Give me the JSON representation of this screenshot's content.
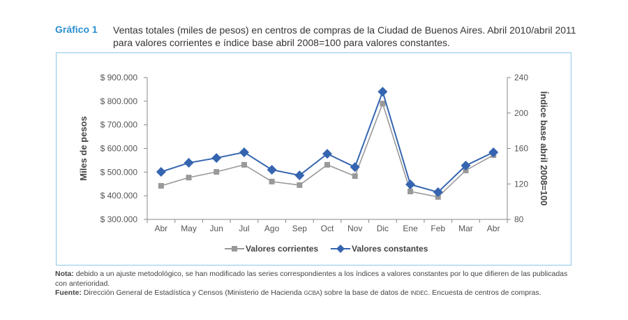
{
  "header": {
    "label": "Gráfico 1",
    "title": "Ventas totales (miles de pesos) en centros de compras de la Ciudad de Buenos Aires. Abril 2010/abril 2011 para valores corrientes e índice base abril 2008=100 para valores constantes."
  },
  "chart_data": {
    "type": "line",
    "categories": [
      "Abr",
      "May",
      "Jun",
      "Jul",
      "Ago",
      "Sep",
      "Oct",
      "Nov",
      "Dic",
      "Ene",
      "Feb",
      "Mar",
      "Abr"
    ],
    "ylabel": "Miles de pesos",
    "y2label": "Índice base abril 2008=100",
    "ylim": [
      300000,
      900000
    ],
    "y_ticks": [
      "$ 300.000",
      "$ 400.000",
      "$ 500.000",
      "$ 600.000",
      "$ 700.000",
      "$ 800.000",
      "$ 900.000"
    ],
    "y2lim": [
      80,
      240
    ],
    "y2_ticks": [
      "80",
      "120",
      "160",
      "200",
      "240"
    ],
    "series": [
      {
        "name": "Valores corrientes",
        "axis": "left",
        "color": "#999999",
        "marker": "square",
        "values": [
          442000,
          477000,
          501000,
          531000,
          460000,
          445000,
          531000,
          483000,
          790000,
          418000,
          395000,
          507000,
          572000
        ]
      },
      {
        "name": "Valores constantes",
        "axis": "right",
        "color": "#3565b0",
        "marker": "diamond",
        "values": [
          133.6,
          143.8,
          149.3,
          155.7,
          136,
          129.7,
          154,
          139,
          224,
          119.4,
          110.7,
          140.7,
          155.7
        ]
      }
    ],
    "legend": "bottom"
  },
  "notes": {
    "nota_label": "Nota:",
    "nota": " debido a un ajuste metodológico, se han modificado las series correspondientes a los índices a valores constantes por lo que difieren de las publicadas con anterioridad.",
    "fuente_label": "Fuente:",
    "fuente_1": " Dirección General de Estadística y Censos (Ministerio de Hacienda ",
    "gcba": "GCBA",
    "fuente_2": ") sobre la base de datos de ",
    "indec": "INDEC",
    "fuente_3": ". Encuesta de centros de compras."
  }
}
